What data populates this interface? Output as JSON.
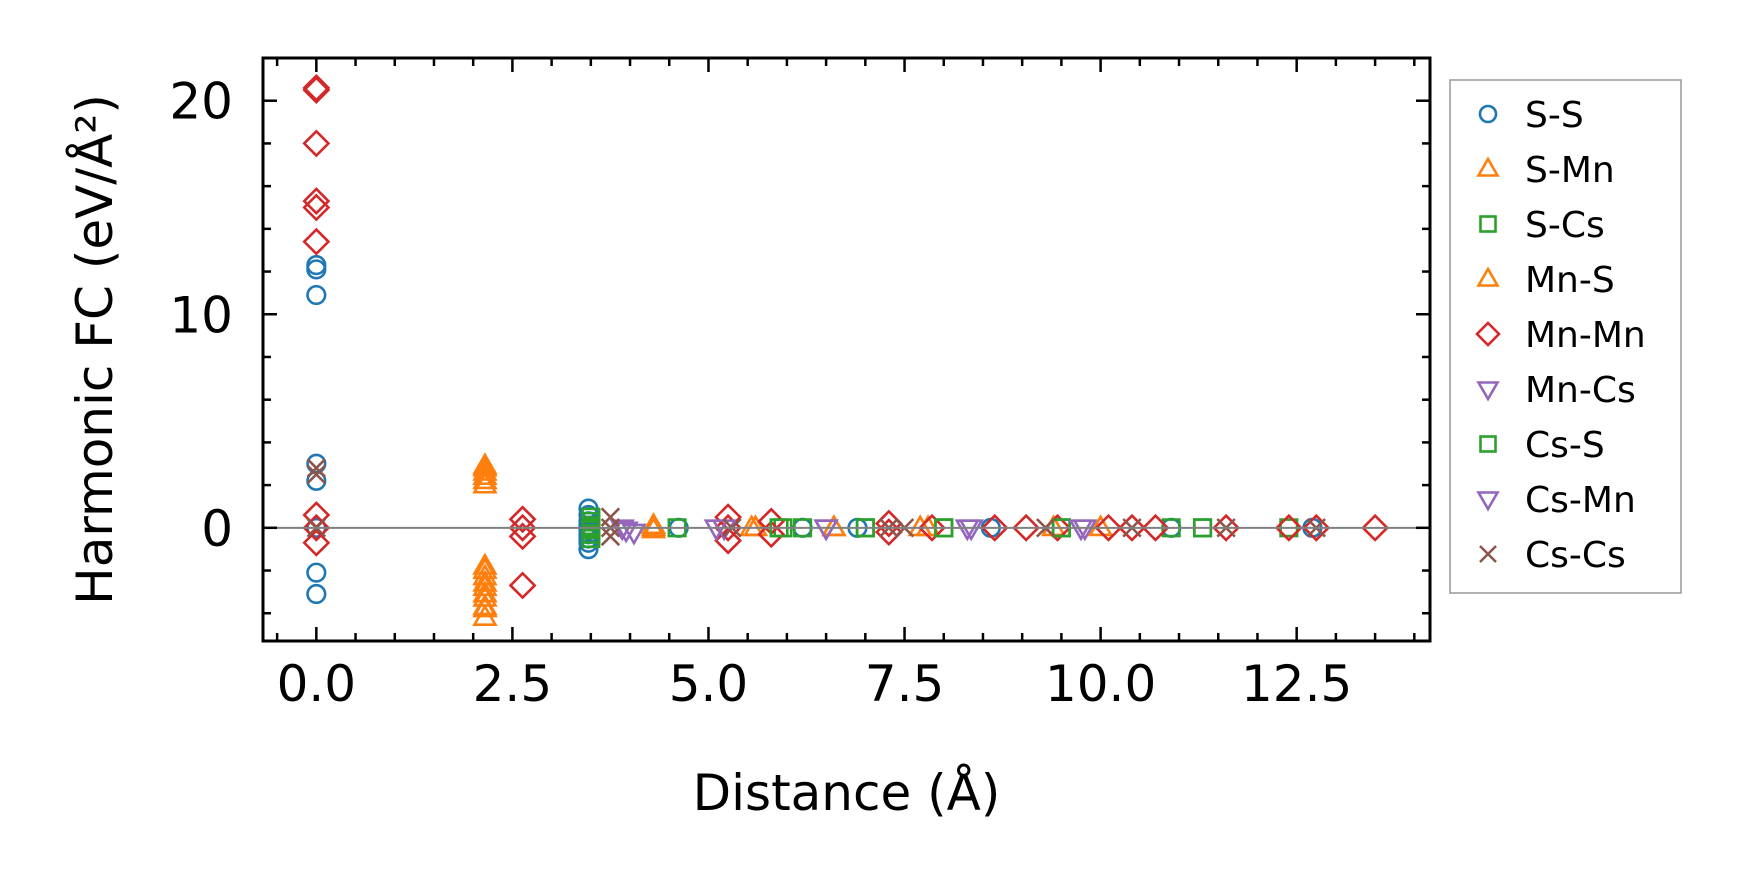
{
  "chart_data": {
    "type": "scatter",
    "title": "",
    "xlabel": "Distance (Å)",
    "ylabel": "Harmonic FC (eV/Å²)",
    "xlim": [
      -0.68,
      14.2
    ],
    "ylim": [
      -5.3,
      22.0
    ],
    "xticks": [
      0.0,
      2.5,
      5.0,
      7.5,
      10.0,
      12.5
    ],
    "xtick_labels": [
      "0.0",
      "2.5",
      "5.0",
      "7.5",
      "10.0",
      "12.5"
    ],
    "yticks": [
      0,
      10,
      20
    ],
    "ytick_labels": [
      "0",
      "10",
      "20"
    ],
    "grid": false,
    "legend_position": "outside-right",
    "reference_line_y": 0,
    "series": [
      {
        "name": "S-S",
        "marker": "circle",
        "color": "#1f77b4",
        "filled": false,
        "x": [
          0.0,
          0.0,
          0.0,
          0.0,
          0.0,
          0.0,
          0.0,
          0.0,
          3.47,
          3.47,
          3.47,
          3.47,
          3.47,
          3.47,
          3.47,
          3.47,
          3.47,
          4.62,
          6.2,
          6.9,
          8.6,
          10.9,
          12.7
        ],
        "y": [
          12.3,
          12.1,
          10.9,
          3.0,
          2.2,
          0.0,
          -2.1,
          -3.1,
          0.9,
          0.6,
          0.3,
          0.1,
          -0.1,
          -0.3,
          -0.5,
          -0.7,
          -1.0,
          0.0,
          0.0,
          0.0,
          0.0,
          0.0,
          0.0
        ]
      },
      {
        "name": "S-Mn",
        "marker": "triangle-up",
        "color": "#ff7f0e",
        "filled": false,
        "x": [
          2.15,
          2.15,
          2.15,
          2.15,
          2.15,
          2.15,
          2.15,
          2.15,
          2.15,
          2.15,
          4.3,
          4.3,
          5.6,
          6.6,
          7.7,
          9.4,
          10.0
        ],
        "y": [
          2.9,
          2.6,
          2.4,
          2.0,
          -1.8,
          -2.3,
          -2.8,
          -3.3,
          -3.7,
          -4.2,
          0.1,
          -0.1,
          0.0,
          0.0,
          0.0,
          0.0,
          0.0
        ]
      },
      {
        "name": "S-Cs",
        "marker": "square",
        "color": "#2ca02c",
        "filled": false,
        "x": [
          3.5,
          4.6,
          5.95,
          6.2,
          7.0,
          8.0,
          9.5,
          10.9,
          11.3,
          12.4
        ],
        "y": [
          0.0,
          0.0,
          0.0,
          0.0,
          0.0,
          0.0,
          0.0,
          0.0,
          0.0,
          0.0
        ]
      },
      {
        "name": "Mn-S",
        "marker": "triangle-up",
        "color": "#ff7f0e",
        "filled": false,
        "x": [
          2.15,
          2.15,
          2.15,
          2.15,
          2.15,
          2.15,
          4.3,
          5.55,
          6.6,
          7.8
        ],
        "y": [
          2.8,
          2.2,
          -2.0,
          -2.6,
          -3.1,
          -3.8,
          0.0,
          0.0,
          0.0,
          0.0
        ]
      },
      {
        "name": "Mn-Mn",
        "marker": "diamond",
        "color": "#d62728",
        "filled": false,
        "x": [
          0.0,
          0.0,
          0.0,
          0.0,
          0.0,
          0.0,
          0.0,
          0.0,
          0.0,
          2.63,
          2.63,
          2.63,
          2.63,
          5.25,
          5.25,
          5.25,
          5.8,
          5.8,
          7.3,
          7.3,
          7.85,
          8.65,
          9.05,
          9.45,
          10.1,
          10.4,
          10.7,
          11.6,
          12.4,
          12.75,
          13.5
        ],
        "y": [
          20.6,
          20.5,
          18.0,
          15.3,
          15.0,
          13.4,
          0.6,
          -0.7,
          0.0,
          0.4,
          0.0,
          -0.4,
          -2.7,
          0.5,
          0.0,
          -0.6,
          0.3,
          -0.3,
          0.2,
          -0.2,
          0.0,
          0.0,
          0.0,
          0.0,
          0.0,
          0.0,
          0.0,
          0.0,
          0.0,
          0.0,
          0.0
        ]
      },
      {
        "name": "Mn-Cs",
        "marker": "triangle-down",
        "color": "#9467bd",
        "filled": false,
        "x": [
          3.9,
          4.05,
          5.1,
          6.5,
          8.3,
          9.8
        ],
        "y": [
          0.0,
          -0.2,
          0.0,
          0.0,
          0.0,
          0.0
        ]
      },
      {
        "name": "Cs-S",
        "marker": "square",
        "color": "#2ca02c",
        "filled": false,
        "x": [
          3.5,
          3.5,
          3.5,
          3.5,
          3.5,
          3.5,
          5.9,
          7.0,
          8.0,
          9.5,
          11.3
        ],
        "y": [
          0.5,
          0.3,
          0.1,
          -0.1,
          -0.3,
          -0.5,
          0.0,
          0.0,
          0.0,
          0.0,
          0.0
        ]
      },
      {
        "name": "Cs-Mn",
        "marker": "triangle-down",
        "color": "#9467bd",
        "filled": false,
        "x": [
          3.95,
          5.2,
          6.5,
          8.35,
          9.75
        ],
        "y": [
          -0.1,
          0.0,
          0.0,
          0.0,
          0.0
        ]
      },
      {
        "name": "Cs-Cs",
        "marker": "x",
        "color": "#8c564b",
        "filled": false,
        "x": [
          0.0,
          0.0,
          0.0,
          3.75,
          3.75,
          3.75,
          5.3,
          7.3,
          7.5,
          9.3,
          10.4,
          11.6,
          12.75
        ],
        "y": [
          2.8,
          2.5,
          0.0,
          0.5,
          0.0,
          -0.4,
          0.0,
          0.0,
          0.0,
          0.0,
          0.0,
          0.0,
          0.0
        ]
      }
    ]
  }
}
